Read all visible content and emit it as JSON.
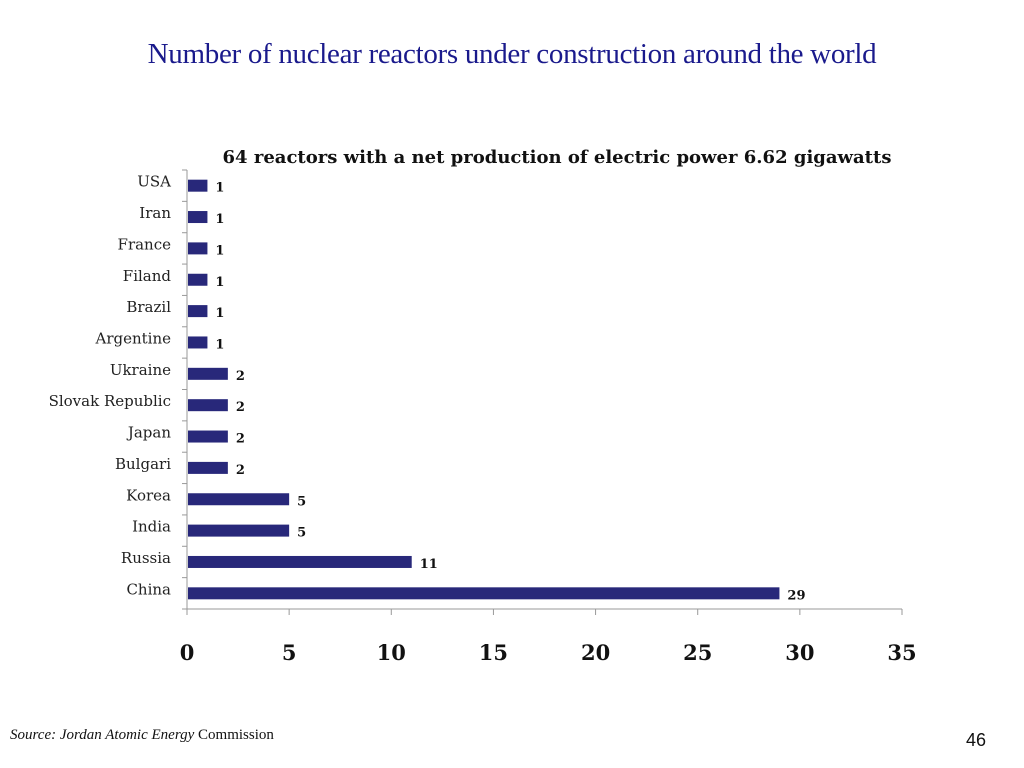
{
  "slide": {
    "title": "Number of nuclear reactors under construction around the world",
    "source_italic": "Source: Jordan Atomic Energy",
    "source_plain": " Commission",
    "page_number": "46"
  },
  "chart_data": {
    "type": "bar",
    "orientation": "horizontal",
    "title": "64 reactors with a net production of electric power 6.62 gigawatts",
    "categories": [
      "USA",
      "Iran",
      "France",
      "Filand",
      "Brazil",
      "Argentine",
      "Ukraine",
      "Slovak Republic",
      "Japan",
      "Bulgari",
      "Korea",
      "India",
      "Russia",
      "China"
    ],
    "values": [
      1,
      1,
      1,
      1,
      1,
      1,
      2,
      2,
      2,
      2,
      5,
      5,
      11,
      29
    ],
    "xlabel": "",
    "ylabel": "",
    "xlim": [
      0,
      35
    ],
    "xticks": [
      0,
      5,
      10,
      15,
      20,
      25,
      30,
      35
    ],
    "grid": false,
    "legend": "none",
    "bar_color": "#28287a"
  }
}
